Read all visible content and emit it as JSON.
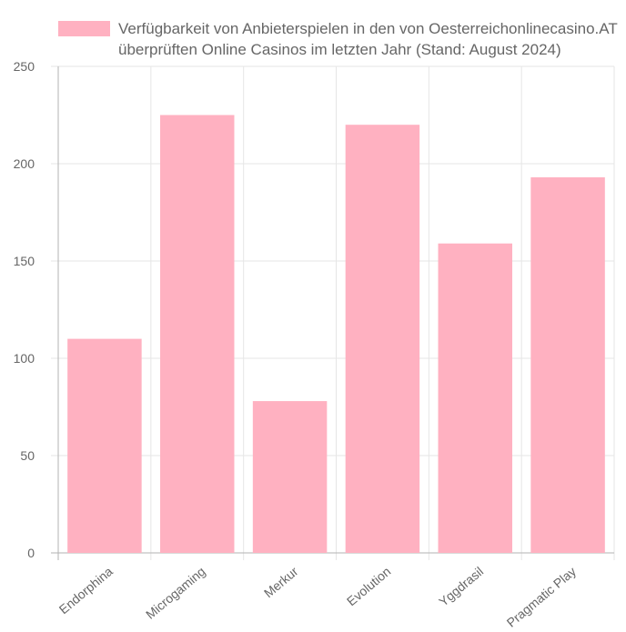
{
  "chart_data": {
    "type": "bar",
    "categories": [
      "Endorphina",
      "Microgaming",
      "Merkur",
      "Evolution",
      "Yggdrasil",
      "Pragmatic Play"
    ],
    "series": [
      {
        "name": "Verfügbarkeit von Anbieterspielen in den von Oesterreichonlinecasino.AT überprüften Online Casinos im letzten Jahr (Stand: August 2024)",
        "legend_lines": [
          "Verfügbarkeit von Anbieterspielen in den von Oesterreichonlinecasino.AT",
          "überprüften Online Casinos im letzten Jahr (Stand: August 2024)"
        ],
        "values": [
          110,
          225,
          78,
          220,
          159,
          193
        ],
        "color": "#ffb1c1"
      }
    ],
    "ylim": [
      0,
      250
    ],
    "yticks": [
      0,
      50,
      100,
      150,
      200,
      250
    ],
    "grid": true,
    "legend_position": "top",
    "title": "",
    "xlabel": "",
    "ylabel": ""
  }
}
